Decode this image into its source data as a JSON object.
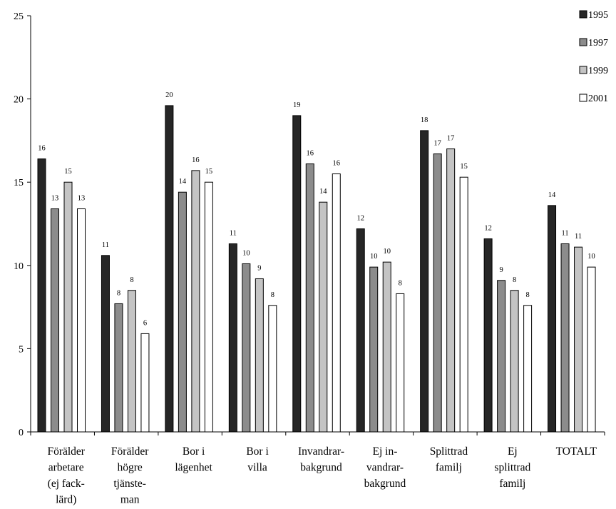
{
  "chart_data": {
    "type": "bar",
    "title": "",
    "xlabel": "",
    "ylabel": "",
    "ylim": [
      0,
      25
    ],
    "yticks": [
      0,
      5,
      10,
      15,
      20,
      25
    ],
    "grid": false,
    "legend_position": "top-right",
    "categories": [
      [
        "Förälder",
        "arbetare",
        "(ej fack-",
        "lärd)"
      ],
      [
        "Förälder",
        "högre",
        "tjänste-",
        "man"
      ],
      [
        "Bor i",
        "lägenhet"
      ],
      [
        "Bor i",
        "villa"
      ],
      [
        "Invandrar-",
        "bakgrund"
      ],
      [
        "Ej in-",
        "vandrar-",
        "bakgrund"
      ],
      [
        "Splittrad",
        "familj"
      ],
      [
        "Ej",
        "splittrad",
        "familj"
      ],
      [
        "TOTALT"
      ]
    ],
    "series": [
      {
        "name": "1995",
        "color": "#262626",
        "values": [
          16.4,
          10.6,
          19.6,
          11.3,
          19.0,
          12.2,
          18.1,
          11.6,
          13.6
        ],
        "labels": [
          "16",
          "11",
          "20",
          "11",
          "19",
          "12",
          "18",
          "12",
          "14"
        ]
      },
      {
        "name": "1997",
        "color": "#8c8c8c",
        "values": [
          13.4,
          7.7,
          14.4,
          10.1,
          16.1,
          9.9,
          16.7,
          9.1,
          11.3
        ],
        "labels": [
          "13",
          "8",
          "14",
          "10",
          "16",
          "10",
          "17",
          "9",
          "11"
        ]
      },
      {
        "name": "1999",
        "color": "#c4c4c4",
        "values": [
          15.0,
          8.5,
          15.7,
          9.2,
          13.8,
          10.2,
          17.0,
          8.5,
          11.1
        ],
        "labels": [
          "15",
          "8",
          "16",
          "9",
          "14",
          "10",
          "17",
          "8",
          "11"
        ]
      },
      {
        "name": "2001",
        "color": "#ffffff",
        "values": [
          13.4,
          5.9,
          15.0,
          7.6,
          15.5,
          8.3,
          15.3,
          7.6,
          9.9
        ],
        "labels": [
          "13",
          "6",
          "15",
          "8",
          "16",
          "8",
          "15",
          "8",
          "10"
        ]
      }
    ]
  }
}
